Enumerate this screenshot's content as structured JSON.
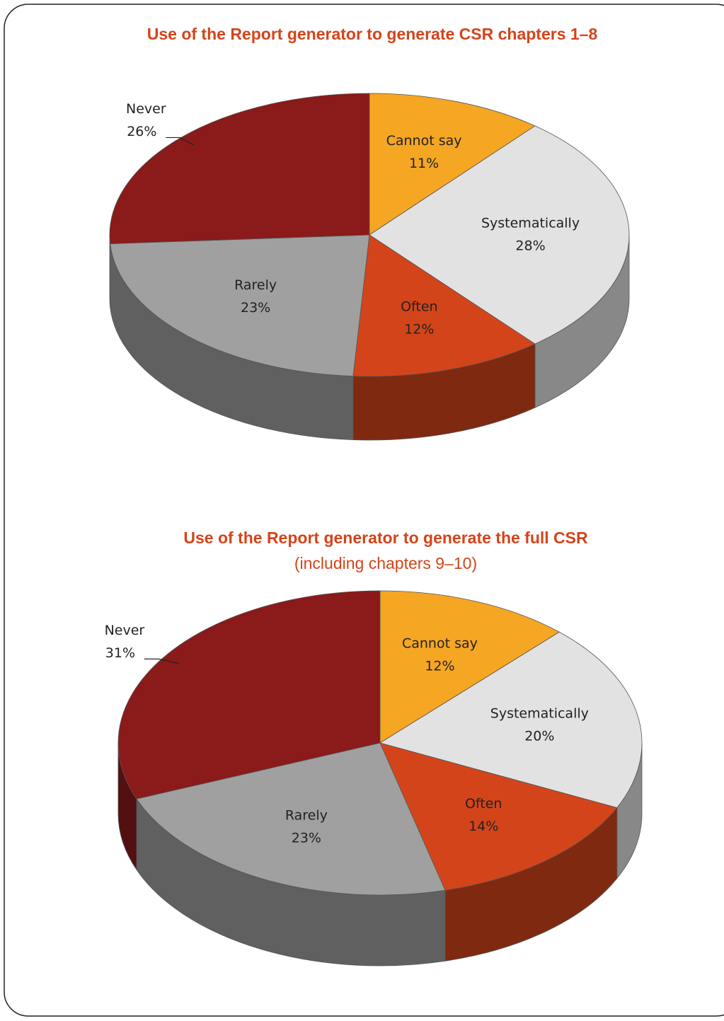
{
  "chart_data": [
    {
      "type": "pie",
      "title": "Use of the Report generator to generate CSR chapters 1–8",
      "categories": [
        "Cannot say",
        "Systematically",
        "Often",
        "Rarely",
        "Never"
      ],
      "values": [
        11,
        28,
        12,
        23,
        26
      ],
      "value_labels": [
        "11%",
        "28%",
        "12%",
        "23%",
        "26%"
      ],
      "colors": [
        "#f5a623",
        "#e2e2e2",
        "#d4441a",
        "#a0a0a0",
        "#8b1a1a"
      ]
    },
    {
      "type": "pie",
      "title": "Use of the Report generator to generate the full CSR",
      "subtitle": "(including chapters 9–10)",
      "categories": [
        "Cannot say",
        "Systematically",
        "Often",
        "Rarely",
        "Never"
      ],
      "values": [
        12,
        20,
        14,
        23,
        31
      ],
      "value_labels": [
        "12%",
        "20%",
        "14%",
        "23%",
        "31%"
      ],
      "colors": [
        "#f5a623",
        "#e2e2e2",
        "#d4441a",
        "#a0a0a0",
        "#8b1a1a"
      ]
    }
  ]
}
